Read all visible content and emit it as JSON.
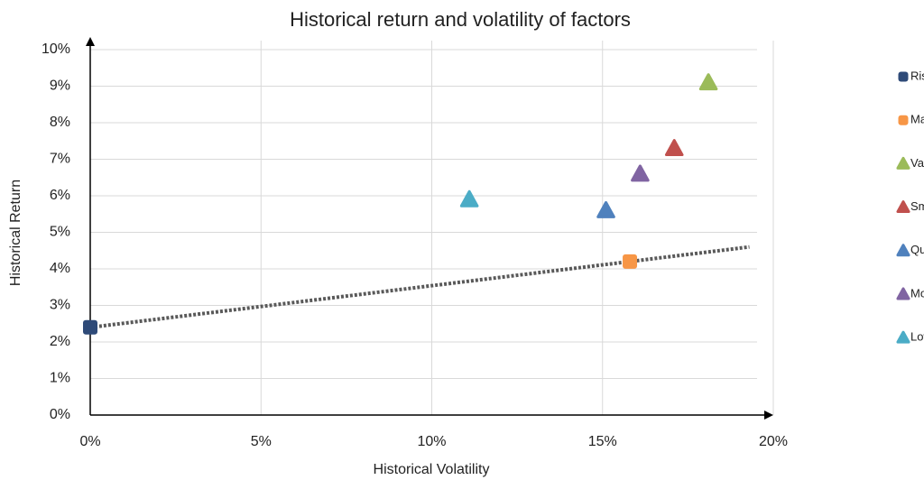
{
  "chart_data": {
    "type": "scatter",
    "title": "Historical return and volatility of factors",
    "x_label": "Historical Volatility",
    "y_label": "Historical Return",
    "xlim": [
      0,
      20
    ],
    "ylim": [
      0,
      10
    ],
    "xticks": [
      {
        "value": 0,
        "label": "0%"
      },
      {
        "value": 5,
        "label": "5%"
      },
      {
        "value": 10,
        "label": "10%"
      },
      {
        "value": 15,
        "label": "15%"
      },
      {
        "value": 20,
        "label": "20%"
      }
    ],
    "yticks": [
      {
        "value": 0,
        "label": "0%"
      },
      {
        "value": 1,
        "label": "1%"
      },
      {
        "value": 2,
        "label": "2%"
      },
      {
        "value": 3,
        "label": "3%"
      },
      {
        "value": 4,
        "label": "4%"
      },
      {
        "value": 5,
        "label": "5%"
      },
      {
        "value": 6,
        "label": "6%"
      },
      {
        "value": 7,
        "label": "7%"
      },
      {
        "value": 8,
        "label": "8%"
      },
      {
        "value": 9,
        "label": "9%"
      },
      {
        "value": 10,
        "label": "10%"
      }
    ],
    "grid": true,
    "legend": "right",
    "series": [
      {
        "name": "Risk-free rate",
        "color": "#2e4a78",
        "marker": "square",
        "x": [
          0
        ],
        "y": [
          2.4
        ]
      },
      {
        "name": "Market",
        "color": "#f79646",
        "marker": "square",
        "x": [
          15.8
        ],
        "y": [
          4.2
        ]
      },
      {
        "name": "Value",
        "color": "#9bbb59",
        "marker": "triangle",
        "x": [
          18.1
        ],
        "y": [
          9.1
        ]
      },
      {
        "name": "Small Cap",
        "color": "#c0504d",
        "marker": "triangle",
        "x": [
          17.1
        ],
        "y": [
          7.3
        ]
      },
      {
        "name": "Quality",
        "color": "#4f81bd",
        "marker": "triangle",
        "x": [
          15.1
        ],
        "y": [
          5.6
        ]
      },
      {
        "name": "Momentum",
        "color": "#8064a2",
        "marker": "triangle",
        "x": [
          16.1
        ],
        "y": [
          6.6
        ]
      },
      {
        "name": "Low Volatility",
        "color": "#4bacc6",
        "marker": "triangle",
        "x": [
          11.1
        ],
        "y": [
          5.9
        ]
      }
    ],
    "trendline": {
      "color": "#595959",
      "x": [
        0,
        19.3
      ],
      "y": [
        2.4,
        4.6
      ]
    }
  }
}
